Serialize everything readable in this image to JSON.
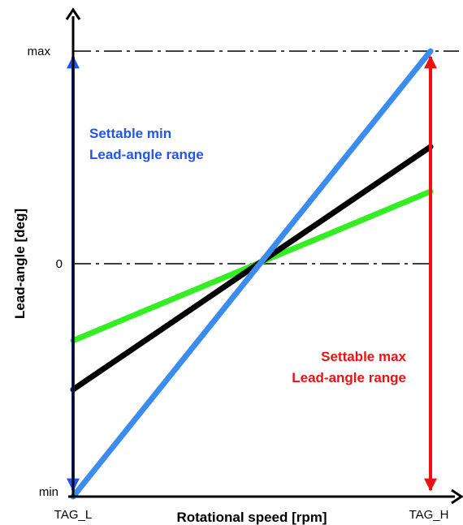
{
  "chart_data": {
    "type": "line",
    "xlabel": "Rotational speed [rpm]",
    "ylabel": "Lead-angle [deg]",
    "x_ticks": [
      "TAG_L",
      "TAG_H"
    ],
    "y_ticks": [
      "min",
      "0",
      "max"
    ],
    "series": [
      {
        "color": "#3c8cf0",
        "values": [
          -1.0,
          1.0
        ]
      },
      {
        "color": "#000000",
        "values": [
          -0.54,
          0.55
        ]
      },
      {
        "color": "#33ee22",
        "values": [
          -0.33,
          0.34
        ]
      }
    ],
    "range_arrows": [
      {
        "color": "#2255ee",
        "at": "TAG_L",
        "from": "min",
        "to": "max",
        "label_lines": [
          "Settable min",
          "Lead-angle range"
        ]
      },
      {
        "color": "#ee1111",
        "at": "TAG_H",
        "from": "min",
        "to": "max",
        "label_lines": [
          "Settable max",
          "Lead-angle range"
        ]
      }
    ],
    "reference_lines": [
      "max",
      "0"
    ]
  }
}
